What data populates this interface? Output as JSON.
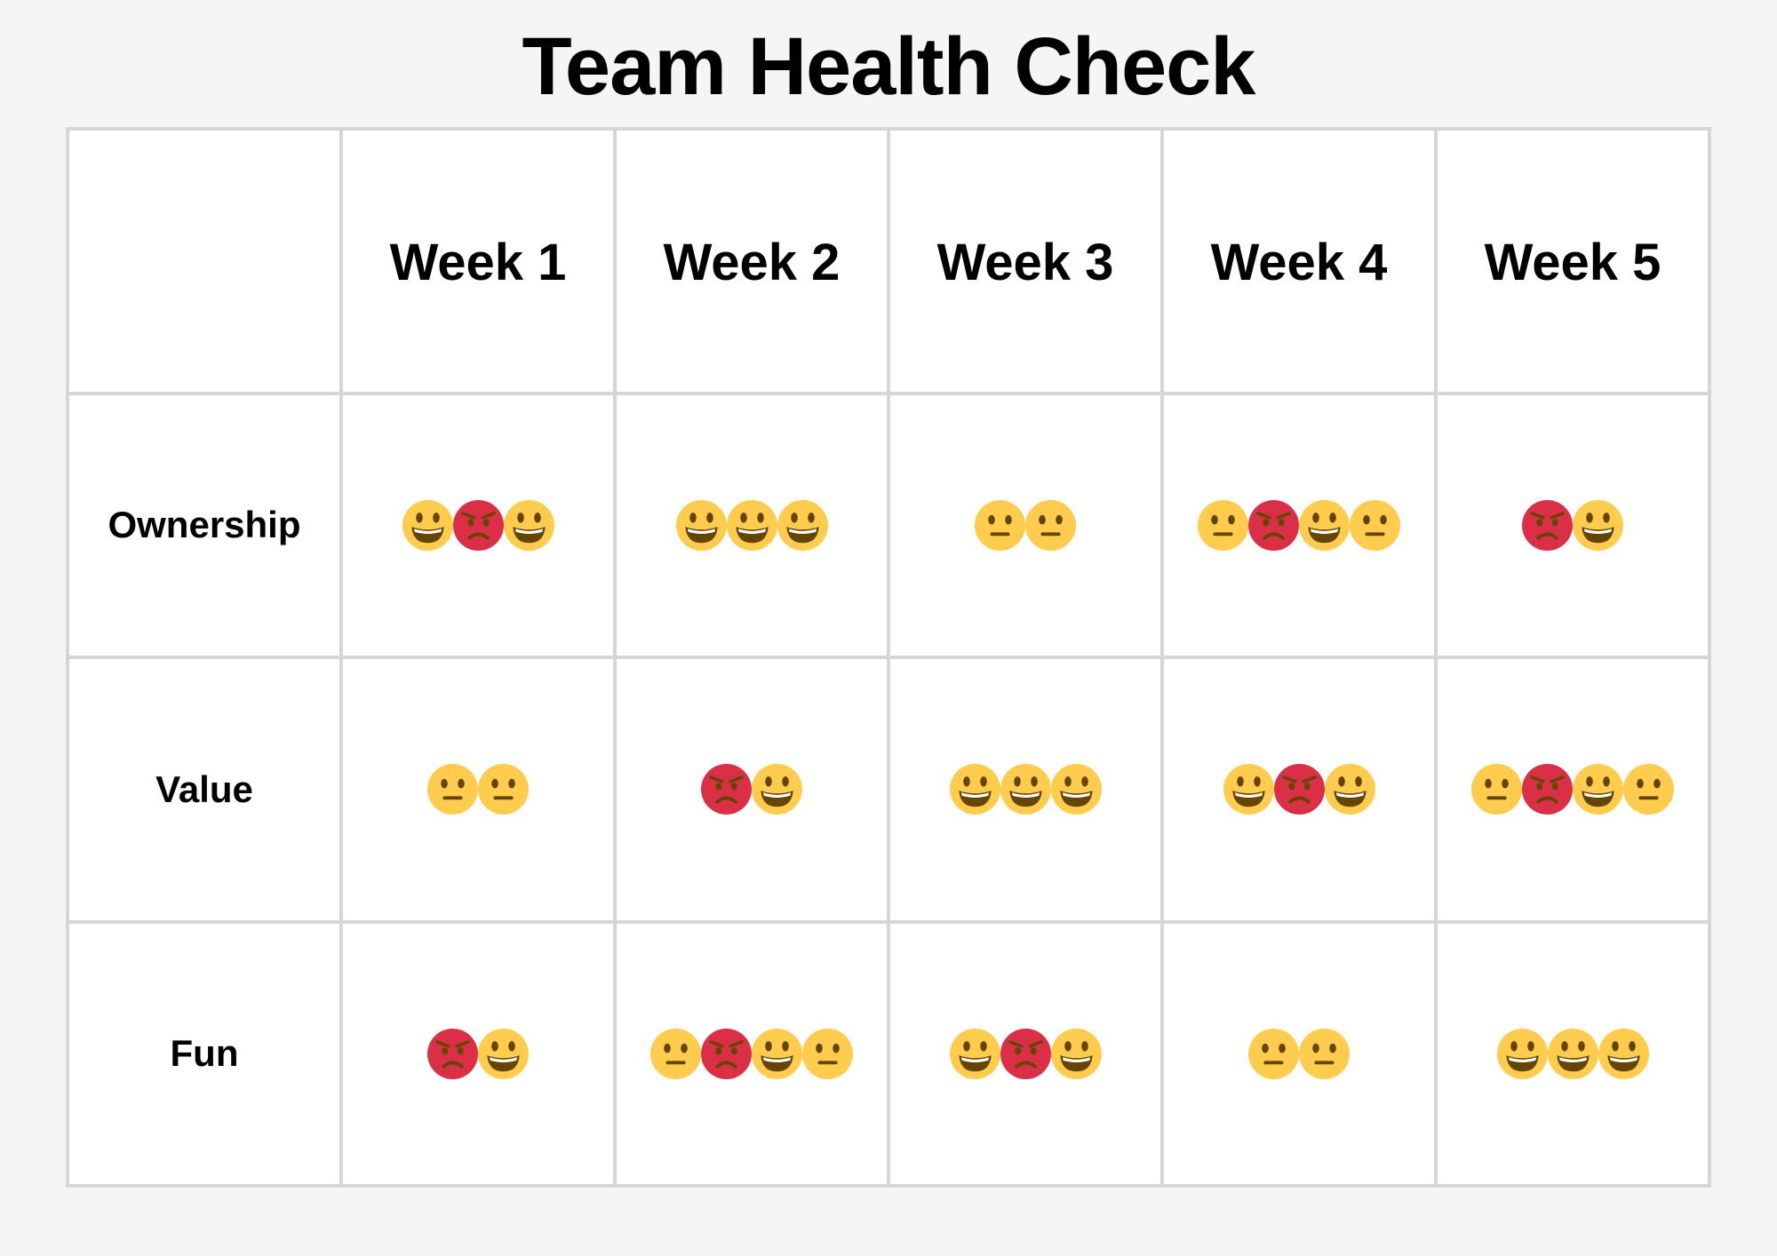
{
  "title": "Team Health Check",
  "chart_data": {
    "type": "table",
    "columns": [
      "",
      "Week 1",
      "Week 2",
      "Week 3",
      "Week 4",
      "Week 5"
    ],
    "rows": [
      {
        "label": "Ownership",
        "cells": [
          [
            "happy",
            "angry",
            "happy"
          ],
          [
            "happy",
            "happy",
            "happy"
          ],
          [
            "neutral",
            "neutral"
          ],
          [
            "neutral",
            "angry",
            "happy",
            "neutral"
          ],
          [
            "angry",
            "happy"
          ]
        ]
      },
      {
        "label": "Value",
        "cells": [
          [
            "neutral",
            "neutral"
          ],
          [
            "angry",
            "happy"
          ],
          [
            "happy",
            "happy",
            "happy"
          ],
          [
            "happy",
            "angry",
            "happy"
          ],
          [
            "neutral",
            "angry",
            "happy",
            "neutral"
          ]
        ]
      },
      {
        "label": "Fun",
        "cells": [
          [
            "angry",
            "happy"
          ],
          [
            "neutral",
            "angry",
            "happy",
            "neutral"
          ],
          [
            "happy",
            "angry",
            "happy"
          ],
          [
            "neutral",
            "neutral"
          ],
          [
            "happy",
            "happy",
            "happy"
          ]
        ]
      }
    ]
  },
  "colors": {
    "background": "#f4f5f7",
    "grid_line": "#d6d6d6",
    "cell": "#ffffff",
    "emoji_yellow": "#ffcc4d",
    "emoji_red": "#da2f47",
    "emoji_feature": "#664500"
  }
}
